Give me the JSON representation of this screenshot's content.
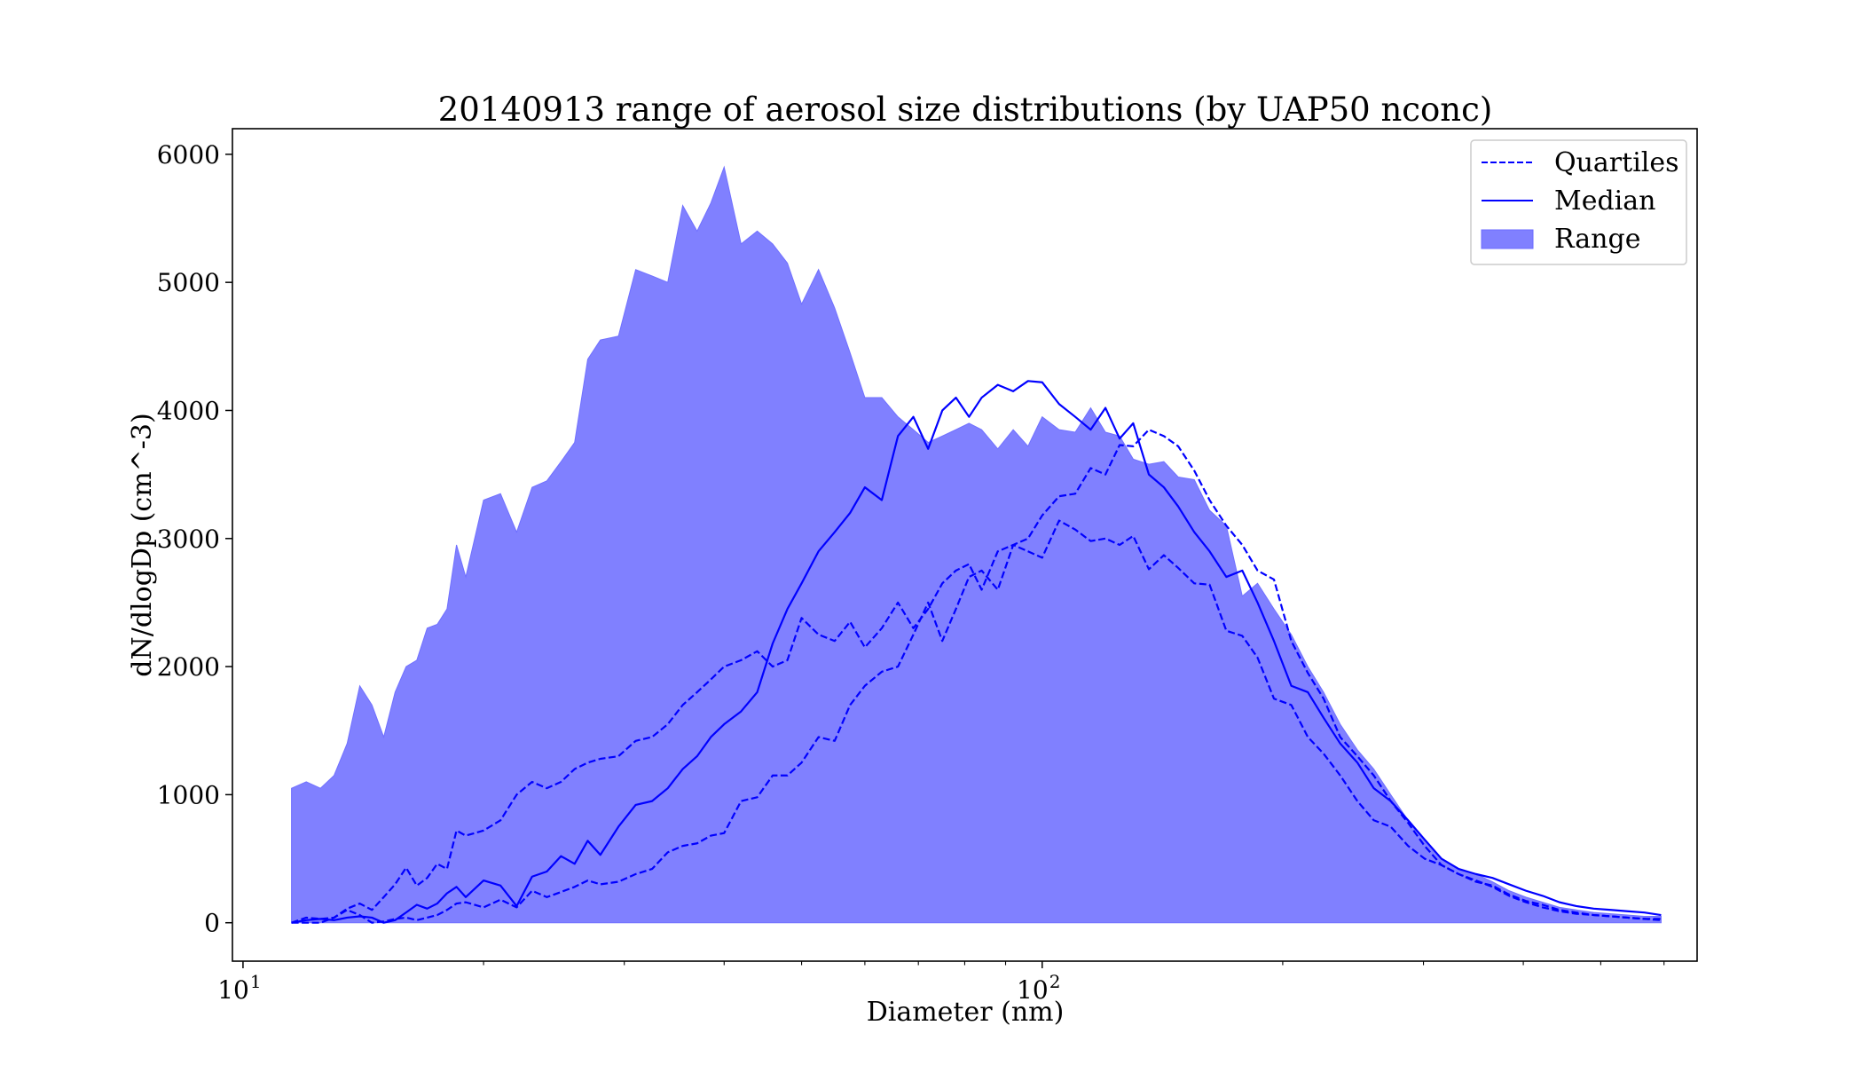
{
  "chart_data": {
    "type": "area",
    "title": "20140913 range of aerosol size distributions (by UAP50 nconc)",
    "xlabel": "Diameter (nm)",
    "ylabel": "dN/dlogDp (cm^-3)",
    "x_scale": "log",
    "xlim": [
      9.7,
      660
    ],
    "ylim": [
      -300,
      6200
    ],
    "x_ticks": [
      {
        "value": 10,
        "base": "10",
        "exp": "1"
      },
      {
        "value": 100,
        "base": "10",
        "exp": "2"
      }
    ],
    "y_ticks": [
      0,
      1000,
      2000,
      3000,
      4000,
      5000,
      6000
    ],
    "grid": false,
    "legend_position": "top-right",
    "colors": {
      "series": "#0000ff",
      "fill": "#8080ff",
      "fill_alpha": 0.5
    },
    "legend": [
      {
        "label": "Quartiles",
        "kind": "dashed-line"
      },
      {
        "label": "Median",
        "kind": "solid-line"
      },
      {
        "label": "Range",
        "kind": "patch"
      }
    ],
    "x": [
      11.5,
      12.0,
      12.5,
      13.0,
      13.5,
      14.0,
      14.5,
      15.0,
      15.5,
      16.0,
      16.5,
      17.0,
      17.5,
      18.0,
      18.5,
      19.0,
      20.0,
      21.0,
      22.0,
      23.0,
      24.0,
      25.0,
      26.0,
      27.0,
      28.0,
      29.5,
      31.0,
      32.5,
      34.0,
      35.5,
      37.0,
      38.5,
      40.0,
      42.0,
      44.0,
      46.0,
      48.0,
      50.0,
      52.5,
      55.0,
      57.5,
      60.0,
      63.0,
      66.0,
      69.0,
      72.0,
      75.0,
      78.0,
      81.0,
      84.0,
      88.0,
      92.0,
      96.0,
      100.0,
      105.0,
      110.0,
      115.0,
      120.0,
      125.0,
      130.0,
      136.0,
      142.0,
      148.0,
      155.0,
      162.0,
      170.0,
      178.0,
      186.0,
      195.0,
      205.0,
      215.0,
      225.0,
      236.0,
      248.0,
      260.0,
      273.0,
      287.0,
      301.0,
      316.0,
      332.0,
      349.0,
      366.0,
      384.0,
      403.0,
      423.0,
      444.0,
      466.0,
      490.0,
      515.0,
      540.0,
      567.0,
      595.0
    ],
    "series": [
      {
        "name": "Range",
        "kind": "range",
        "lower": [
          0,
          0,
          0,
          0,
          0,
          0,
          0,
          0,
          0,
          0,
          0,
          0,
          0,
          0,
          0,
          0,
          0,
          0,
          0,
          0,
          0,
          0,
          0,
          0,
          0,
          0,
          0,
          0,
          0,
          0,
          0,
          0,
          0,
          0,
          0,
          0,
          0,
          0,
          0,
          0,
          0,
          0,
          0,
          0,
          0,
          0,
          0,
          0,
          0,
          0,
          0,
          0,
          0,
          0,
          0,
          0,
          0,
          0,
          0,
          0,
          0,
          0,
          0,
          0,
          0,
          0,
          0,
          0,
          0,
          0,
          0,
          0,
          0,
          0,
          0,
          0,
          0,
          0,
          0,
          0,
          0,
          0,
          0,
          0,
          0,
          0,
          0,
          0,
          0,
          0,
          0,
          0
        ],
        "upper": [
          1050,
          1100,
          1050,
          1150,
          1400,
          1850,
          1700,
          1450,
          1800,
          2000,
          2050,
          2300,
          2330,
          2450,
          2950,
          2700,
          3300,
          3350,
          3050,
          3400,
          3450,
          3600,
          3750,
          4400,
          4550,
          4580,
          5100,
          5050,
          5000,
          5600,
          5400,
          5620,
          5900,
          5300,
          5400,
          5300,
          5150,
          4830,
          5100,
          4800,
          4450,
          4100,
          4100,
          3950,
          3850,
          3750,
          3800,
          3850,
          3900,
          3850,
          3700,
          3850,
          3720,
          3950,
          3850,
          3830,
          4020,
          3830,
          3800,
          3620,
          3580,
          3600,
          3480,
          3460,
          3220,
          3100,
          2550,
          2650,
          2450,
          2250,
          2000,
          1800,
          1550,
          1350,
          1200,
          1000,
          800,
          650,
          500,
          420,
          380,
          320,
          250,
          200,
          160,
          120,
          100,
          80,
          70,
          60,
          50,
          50
        ]
      },
      {
        "name": "Median",
        "kind": "median",
        "values": [
          0,
          20,
          30,
          20,
          40,
          50,
          40,
          0,
          20,
          80,
          140,
          110,
          150,
          230,
          280,
          200,
          330,
          290,
          130,
          360,
          400,
          520,
          460,
          640,
          530,
          750,
          920,
          950,
          1050,
          1200,
          1300,
          1450,
          1550,
          1650,
          1800,
          2180,
          2450,
          2650,
          2900,
          3050,
          3200,
          3400,
          3300,
          3800,
          3950,
          3700,
          4000,
          4100,
          3950,
          4100,
          4200,
          4150,
          4230,
          4220,
          4050,
          3950,
          3850,
          4020,
          3780,
          3900,
          3500,
          3400,
          3250,
          3050,
          2900,
          2700,
          2750,
          2500,
          2200,
          1850,
          1800,
          1600,
          1400,
          1250,
          1050,
          950,
          800,
          650,
          500,
          420,
          380,
          350,
          300,
          250,
          210,
          160,
          130,
          110,
          100,
          90,
          80,
          60
        ]
      },
      {
        "name": "Quartiles",
        "kind": "upper-quartile",
        "values": [
          0,
          40,
          30,
          40,
          110,
          150,
          100,
          200,
          300,
          430,
          290,
          350,
          460,
          420,
          720,
          680,
          720,
          800,
          1000,
          1100,
          1050,
          1100,
          1200,
          1250,
          1280,
          1300,
          1420,
          1450,
          1550,
          1700,
          1800,
          1900,
          2000,
          2050,
          2120,
          2000,
          2050,
          2380,
          2250,
          2200,
          2350,
          2150,
          2300,
          2500,
          2300,
          2450,
          2650,
          2750,
          2800,
          2600,
          2900,
          2950,
          3000,
          3180,
          3330,
          3350,
          3550,
          3500,
          3730,
          3720,
          3850,
          3800,
          3720,
          3530,
          3300,
          3100,
          2950,
          2750,
          2680,
          2200,
          1950,
          1750,
          1450,
          1300,
          1150,
          950,
          780,
          600,
          450,
          380,
          320,
          290,
          220,
          170,
          140,
          100,
          80,
          60,
          50,
          40,
          30,
          20
        ]
      },
      {
        "name": "",
        "kind": "lower-quartile",
        "values": [
          0,
          0,
          0,
          40,
          100,
          60,
          0,
          10,
          30,
          40,
          20,
          40,
          60,
          100,
          150,
          160,
          120,
          180,
          120,
          250,
          200,
          240,
          280,
          330,
          300,
          320,
          380,
          420,
          550,
          600,
          620,
          680,
          700,
          950,
          980,
          1150,
          1150,
          1250,
          1450,
          1420,
          1700,
          1850,
          1960,
          2000,
          2250,
          2500,
          2200,
          2450,
          2700,
          2750,
          2600,
          2950,
          2900,
          2850,
          3140,
          3070,
          2980,
          3000,
          2950,
          3020,
          2760,
          2870,
          2770,
          2650,
          2640,
          2280,
          2240,
          2070,
          1750,
          1700,
          1450,
          1320,
          1150,
          950,
          800,
          750,
          600,
          500,
          450,
          380,
          330,
          280,
          210,
          160,
          120,
          90,
          70,
          60,
          50,
          40,
          30,
          30
        ]
      }
    ]
  }
}
